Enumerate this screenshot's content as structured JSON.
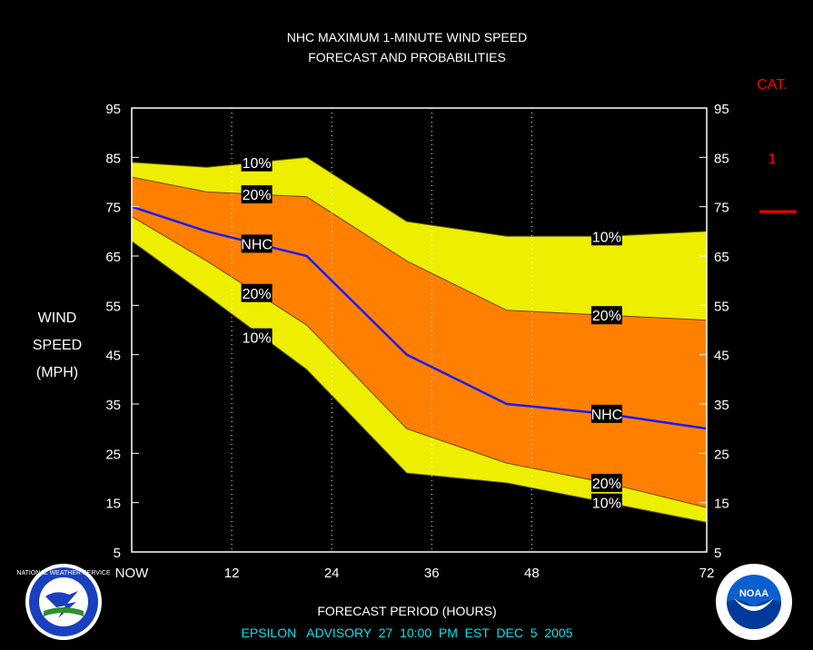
{
  "title_line1": "NHC MAXIMUM 1-MINUTE WIND SPEED",
  "title_line2": "FORECAST AND PROBABILITIES",
  "ylabel_lines": [
    "WIND",
    "SPEED",
    "(MPH)"
  ],
  "xlabel": "FORECAST PERIOD (HOURS)",
  "footer": "EPSILON   ADVISORY  27  10:00  PM  EST  DEC  5  2005",
  "cat_label": "CAT.",
  "cat_value": "1",
  "colors": {
    "background": "#000000",
    "band_outer": "#eeee00",
    "band_inner": "#ff8000",
    "nhc_line": "#1a1aff",
    "axis_text": "#ffffff",
    "cat": "#ff0000",
    "footer": "#00e5ee"
  },
  "logos": {
    "left": "NATIONAL WEATHER SERVICE",
    "right": "NOAA"
  },
  "chart_data": {
    "type": "area",
    "x_ticks": [
      0,
      12,
      24,
      36,
      48,
      72
    ],
    "x_tick_labels": [
      "NOW",
      "12",
      "24",
      "36",
      "48",
      "72"
    ],
    "xlim": [
      0,
      69
    ],
    "y_ticks": [
      5,
      15,
      25,
      35,
      45,
      55,
      65,
      75,
      85,
      95
    ],
    "ylim": [
      5,
      95
    ],
    "x": [
      0,
      9,
      21,
      33,
      45,
      57,
      69
    ],
    "series": [
      {
        "name": "10%",
        "role": "upper",
        "values": [
          84,
          83,
          85,
          72,
          69,
          69,
          70
        ]
      },
      {
        "name": "20%",
        "role": "upper",
        "values": [
          81,
          78,
          77,
          64,
          54,
          53,
          52
        ]
      },
      {
        "name": "NHC",
        "role": "forecast",
        "values": [
          75,
          70,
          65,
          45,
          35,
          33,
          30
        ]
      },
      {
        "name": "20%",
        "role": "lower",
        "values": [
          73,
          64,
          51,
          30,
          23,
          19,
          14
        ]
      },
      {
        "name": "10%",
        "role": "lower",
        "values": [
          68,
          57,
          42,
          21,
          19,
          15,
          11
        ]
      }
    ],
    "labels": [
      {
        "text": "10%",
        "x": 15,
        "y": 84
      },
      {
        "text": "20%",
        "x": 15,
        "y": 77.5
      },
      {
        "text": "NHC",
        "x": 15,
        "y": 67.5
      },
      {
        "text": "20%",
        "x": 15,
        "y": 57.5
      },
      {
        "text": "10%",
        "x": 15,
        "y": 48.5
      },
      {
        "text": "10%",
        "x": 57,
        "y": 69
      },
      {
        "text": "20%",
        "x": 57,
        "y": 53
      },
      {
        "text": "NHC",
        "x": 57,
        "y": 33
      },
      {
        "text": "20%",
        "x": 57,
        "y": 19
      },
      {
        "text": "10%",
        "x": 57,
        "y": 15
      }
    ],
    "cat_threshold": 74
  }
}
